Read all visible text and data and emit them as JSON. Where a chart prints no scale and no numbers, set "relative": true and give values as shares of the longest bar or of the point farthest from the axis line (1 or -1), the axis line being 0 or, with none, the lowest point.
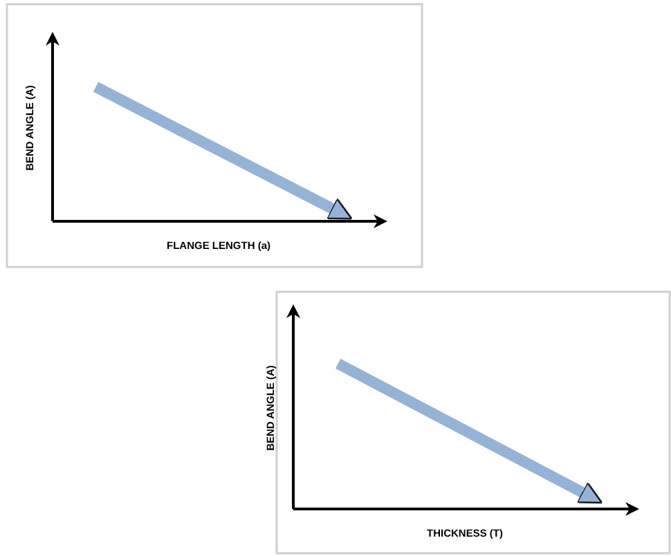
{
  "chart_data": [
    {
      "type": "line",
      "xlabel": "FLANGE LENGTH (a)",
      "ylabel": "BEND ANGLE (A)",
      "categories": [
        null,
        null
      ],
      "relative": true,
      "series": [
        {
          "color": "#95b3d7",
          "values": [
            1,
            0.08
          ]
        }
      ]
    },
    {
      "type": "line",
      "xlabel": "THICKNESS  (T)",
      "ylabel": "BEND ANGLE (A)",
      "categories": [
        null,
        null
      ],
      "relative": true,
      "series": [
        {
          "color": "#95b3d7",
          "values": [
            1,
            0.1
          ]
        }
      ]
    }
  ]
}
